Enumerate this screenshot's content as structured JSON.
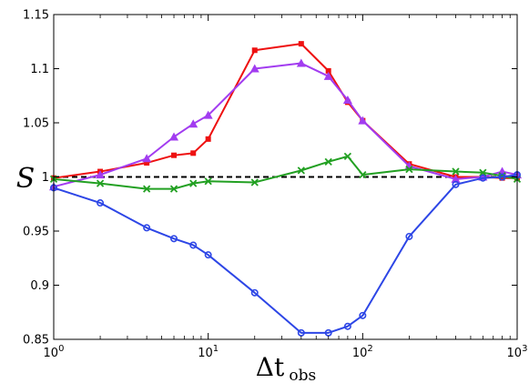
{
  "chart_data": {
    "type": "line",
    "title": "",
    "xlabel": {
      "main": "Δt",
      "subscript": "obs"
    },
    "ylabel": "S",
    "xscale": "log",
    "xlim": [
      1,
      1000
    ],
    "ylim": [
      0.85,
      1.15
    ],
    "xticks": [
      {
        "value": 1,
        "base": "10",
        "exp": "0"
      },
      {
        "value": 10,
        "base": "10",
        "exp": "1"
      },
      {
        "value": 100,
        "base": "10",
        "exp": "2"
      },
      {
        "value": 1000,
        "base": "10",
        "exp": "3"
      }
    ],
    "yticks": [
      {
        "value": 0.85,
        "label": "0.85"
      },
      {
        "value": 0.9,
        "label": "0.9"
      },
      {
        "value": 0.95,
        "label": "0.95"
      },
      {
        "value": 1.0,
        "label": "1"
      },
      {
        "value": 1.05,
        "label": "1.05"
      },
      {
        "value": 1.1,
        "label": "1.1"
      },
      {
        "value": 1.15,
        "label": "1.15"
      }
    ],
    "grid": false,
    "reference_line": {
      "y": 1.0,
      "style": "dashed",
      "color": "#000000"
    },
    "series": [
      {
        "color": "#ee1111",
        "marker": "square",
        "x": [
          1,
          2,
          4,
          6,
          8,
          10,
          20,
          40,
          60,
          80,
          100,
          200,
          400,
          600,
          800,
          1000
        ],
        "y": [
          0.999,
          1.005,
          1.013,
          1.02,
          1.022,
          1.035,
          1.117,
          1.123,
          1.098,
          1.069,
          1.052,
          1.012,
          1.0,
          1.0,
          0.999,
          0.999
        ]
      },
      {
        "color": "#a23cf0",
        "marker": "triangle",
        "x": [
          1,
          2,
          4,
          6,
          8,
          10,
          20,
          40,
          60,
          80,
          100,
          200,
          400,
          600,
          800,
          1000
        ],
        "y": [
          0.991,
          1.002,
          1.017,
          1.037,
          1.049,
          1.057,
          1.1,
          1.105,
          1.093,
          1.071,
          1.052,
          1.01,
          0.998,
          1.0,
          1.005,
          1.002
        ]
      },
      {
        "color": "#22a022",
        "marker": "x",
        "x": [
          1,
          2,
          4,
          6,
          8,
          10,
          20,
          40,
          60,
          80,
          100,
          200,
          400,
          600,
          800,
          1000
        ],
        "y": [
          0.998,
          0.994,
          0.989,
          0.989,
          0.994,
          0.996,
          0.995,
          1.006,
          1.014,
          1.019,
          1.002,
          1.007,
          1.005,
          1.004,
          1.001,
          0.998
        ]
      },
      {
        "color": "#2d46e6",
        "marker": "circle",
        "x": [
          1,
          2,
          4,
          6,
          8,
          10,
          20,
          40,
          60,
          80,
          100,
          200,
          400,
          600,
          800,
          1000
        ],
        "y": [
          0.99,
          0.976,
          0.953,
          0.943,
          0.937,
          0.928,
          0.893,
          0.856,
          0.856,
          0.862,
          0.872,
          0.945,
          0.993,
          0.999,
          1.0,
          1.002
        ]
      }
    ]
  }
}
